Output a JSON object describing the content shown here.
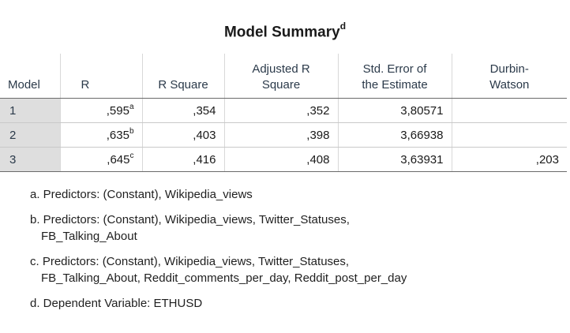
{
  "title": "Model Summary",
  "title_sup": "d",
  "columns": {
    "model": "Model",
    "r": "R",
    "r_square": "R Square",
    "adj_r_square_1": "Adjusted R",
    "adj_r_square_2": "Square",
    "std_err_1": "Std. Error of",
    "std_err_2": "the Estimate",
    "dw_1": "Durbin-",
    "dw_2": "Watson"
  },
  "rows": [
    {
      "model": "1",
      "r": ",595",
      "r_sup": "a",
      "r_square": ",354",
      "adj_r_square": ",352",
      "std_err": "3,80571",
      "durbin_watson": ""
    },
    {
      "model": "2",
      "r": ",635",
      "r_sup": "b",
      "r_square": ",403",
      "adj_r_square": ",398",
      "std_err": "3,66938",
      "durbin_watson": ""
    },
    {
      "model": "3",
      "r": ",645",
      "r_sup": "c",
      "r_square": ",416",
      "adj_r_square": ",408",
      "std_err": "3,63931",
      "durbin_watson": ",203"
    }
  ],
  "footnotes": {
    "a": "a. Predictors: (Constant), Wikipedia_views",
    "b1": "b. Predictors: (Constant), Wikipedia_views, Twitter_Statuses,",
    "b2": "FB_Talking_About",
    "c1": "c. Predictors: (Constant), Wikipedia_views, Twitter_Statuses,",
    "c2": "FB_Talking_About, Reddit_comments_per_day, Reddit_post_per_day",
    "d": "d. Dependent Variable: ETHUSD"
  }
}
